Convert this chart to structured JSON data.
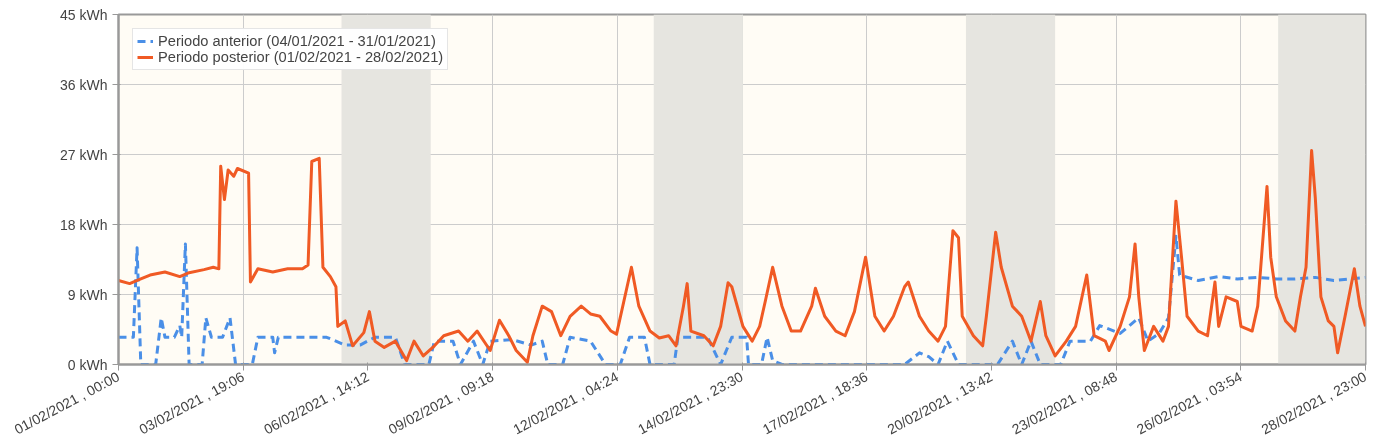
{
  "chart_data": {
    "type": "line",
    "xlim": [
      "2021-02-01T00:00",
      "2021-02-28T23:00"
    ],
    "xticks": [
      {
        "value": "2021-02-01T00:00",
        "label": "01/02/2021 , 00:00"
      },
      {
        "value": "2021-02-03T19:06",
        "label": "03/02/2021 , 19:06"
      },
      {
        "value": "2021-02-06T14:12",
        "label": "06/02/2021 , 14:12"
      },
      {
        "value": "2021-02-09T09:18",
        "label": "09/02/2021 , 09:18"
      },
      {
        "value": "2021-02-12T04:24",
        "label": "12/02/2021 , 04:24"
      },
      {
        "value": "2021-02-14T23:30",
        "label": "14/02/2021 , 23:30"
      },
      {
        "value": "2021-02-17T18:36",
        "label": "17/02/2021 , 18:36"
      },
      {
        "value": "2021-02-20T13:42",
        "label": "20/02/2021 , 13:42"
      },
      {
        "value": "2021-02-23T08:48",
        "label": "23/02/2021 , 08:48"
      },
      {
        "value": "2021-02-26T03:54",
        "label": "26/02/2021 , 03:54"
      },
      {
        "value": "2021-02-28T23:00",
        "label": "28/02/2021 , 23:00"
      }
    ],
    "ylim": [
      0,
      45
    ],
    "yticks": [
      {
        "value": 0,
        "label": "0 kWh"
      },
      {
        "value": 9,
        "label": "9 kWh"
      },
      {
        "value": 18,
        "label": "18 kWh"
      },
      {
        "value": 27,
        "label": "27 kWh"
      },
      {
        "value": 36,
        "label": "36 kWh"
      },
      {
        "value": 45,
        "label": "45 kWh"
      }
    ],
    "grid": true,
    "legend": "top left",
    "bands": [
      {
        "axis": "x",
        "from": "2021-02-06T00:00",
        "to": "2021-02-08T00:00",
        "color": "#e6e5e0"
      },
      {
        "axis": "x",
        "from": "2021-02-13T00:00",
        "to": "2021-02-15T00:00",
        "color": "#e6e5e0"
      },
      {
        "axis": "x",
        "from": "2021-02-20T00:00",
        "to": "2021-02-22T00:00",
        "color": "#e6e5e0"
      },
      {
        "axis": "x",
        "from": "2021-02-27T00:00",
        "to": "2021-02-28T23:00",
        "color": "#e6e5e0"
      }
    ],
    "series": [
      {
        "name": "Periodo anterior (04/01/2021 - 31/01/2021)",
        "color": "#4a8fe7",
        "line_style": "dashed",
        "x": [
          "2021-02-01T00:00",
          "2021-02-01T06:00",
          "2021-02-01T08:00",
          "2021-02-01T10:00",
          "2021-02-01T12:00",
          "2021-02-01T20:00",
          "2021-02-01T23:00",
          "2021-02-02T01:00",
          "2021-02-02T06:00",
          "2021-02-02T09:00",
          "2021-02-02T10:00",
          "2021-02-02T12:00",
          "2021-02-02T14:00",
          "2021-02-02T21:00",
          "2021-02-02T23:00",
          "2021-02-03T02:00",
          "2021-02-03T08:00",
          "2021-02-03T12:00",
          "2021-02-03T15:00",
          "2021-02-04T00:00",
          "2021-02-04T03:00",
          "2021-02-04T11:00",
          "2021-02-04T12:00",
          "2021-02-04T14:00",
          "2021-02-05T16:00",
          "2021-02-06T02:00",
          "2021-02-06T10:00",
          "2021-02-06T18:00",
          "2021-02-07T05:00",
          "2021-02-07T10:00",
          "2021-02-07T23:00",
          "2021-02-08T02:00",
          "2021-02-08T12:00",
          "2021-02-08T16:00",
          "2021-02-08T23:00",
          "2021-02-09T04:00",
          "2021-02-09T08:00",
          "2021-02-09T20:00",
          "2021-02-10T06:00",
          "2021-02-10T12:00",
          "2021-02-10T15:00",
          "2021-02-10T23:00",
          "2021-02-11T03:00",
          "2021-02-11T14:00",
          "2021-02-11T22:00",
          "2021-02-12T06:00",
          "2021-02-12T11:00",
          "2021-02-12T19:00",
          "2021-02-12T22:00",
          "2021-02-13T11:00",
          "2021-02-13T13:00",
          "2021-02-14T05:00",
          "2021-02-14T12:00",
          "2021-02-14T18:00",
          "2021-02-15T02:00",
          "2021-02-15T03:00",
          "2021-02-15T10:00",
          "2021-02-15T13:00",
          "2021-02-15T16:00",
          "2021-02-15T21:00",
          "2021-02-18T15:00",
          "2021-02-18T23:00",
          "2021-02-19T04:00",
          "2021-02-19T09:00",
          "2021-02-19T14:00",
          "2021-02-19T20:00",
          "2021-02-20T17:00",
          "2021-02-21T01:00",
          "2021-02-21T06:00",
          "2021-02-21T11:00",
          "2021-02-21T16:00",
          "2021-02-22T03:00",
          "2021-02-22T08:00",
          "2021-02-22T19:00",
          "2021-02-23T00:00",
          "2021-02-23T11:00",
          "2021-02-23T16:00",
          "2021-02-23T21:00",
          "2021-02-24T02:00",
          "2021-02-24T08:00",
          "2021-02-24T13:00",
          "2021-02-24T17:00",
          "2021-02-24T19:00",
          "2021-02-25T05:00",
          "2021-02-25T16:00",
          "2021-02-26T02:00",
          "2021-02-26T13:00",
          "2021-02-26T23:00",
          "2021-02-27T09:00",
          "2021-02-27T20:00",
          "2021-02-28T06:00",
          "2021-02-28T23:00"
        ],
        "values": [
          3.5,
          3.5,
          3.5,
          15,
          0,
          0,
          6,
          3.5,
          3.5,
          5,
          3.5,
          15.5,
          0,
          0,
          6,
          3.5,
          3.5,
          6,
          0,
          0,
          3.5,
          3.5,
          1.5,
          3.5,
          3.5,
          2.5,
          2.5,
          3.5,
          3.5,
          0,
          0,
          3,
          3,
          0,
          3,
          0,
          3,
          3.2,
          2.5,
          3,
          0,
          0,
          3.5,
          3,
          0,
          0,
          3.5,
          3.5,
          0,
          0,
          3.5,
          3.5,
          0,
          3.5,
          3.5,
          0,
          0,
          3.5,
          0.5,
          0,
          0,
          1.5,
          1,
          0,
          3,
          0,
          0,
          3,
          0,
          3,
          0,
          0,
          3,
          3,
          5,
          4,
          5,
          6,
          3,
          4,
          6,
          16.5,
          11.5,
          10.8,
          11.3,
          11,
          11.2,
          11,
          11,
          11.2,
          10.8,
          11.2
        ]
      },
      {
        "name": "Periodo posterior (01/02/2021 - 28/02/2021)",
        "color": "#f05a24",
        "line_style": "solid",
        "x": [
          "2021-02-01T00:00",
          "2021-02-01T06:00",
          "2021-02-01T12:00",
          "2021-02-01T17:00",
          "2021-02-02T01:00",
          "2021-02-02T09:00",
          "2021-02-02T14:00",
          "2021-02-02T22:00",
          "2021-02-03T03:00",
          "2021-02-03T06:00",
          "2021-02-03T07:00",
          "2021-02-03T09:00",
          "2021-02-03T11:00",
          "2021-02-03T14:00",
          "2021-02-03T16:00",
          "2021-02-03T22:00",
          "2021-02-03T23:00",
          "2021-02-04T03:00",
          "2021-02-04T11:00",
          "2021-02-04T19:00",
          "2021-02-05T03:00",
          "2021-02-05T06:00",
          "2021-02-05T08:00",
          "2021-02-05T12:00",
          "2021-02-05T14:00",
          "2021-02-05T18:00",
          "2021-02-05T21:00",
          "2021-02-05T22:00",
          "2021-02-06T02:00",
          "2021-02-06T06:00",
          "2021-02-06T12:00",
          "2021-02-06T15:00",
          "2021-02-06T18:00",
          "2021-02-06T23:00",
          "2021-02-07T05:00",
          "2021-02-07T11:00",
          "2021-02-07T15:00",
          "2021-02-07T20:00",
          "2021-02-08T02:00",
          "2021-02-08T07:00",
          "2021-02-08T15:00",
          "2021-02-08T20:00",
          "2021-02-09T01:00",
          "2021-02-09T08:00",
          "2021-02-09T13:00",
          "2021-02-09T18:00",
          "2021-02-09T22:00",
          "2021-02-10T04:00",
          "2021-02-10T07:00",
          "2021-02-10T12:00",
          "2021-02-10T17:00",
          "2021-02-10T22:00",
          "2021-02-11T03:00",
          "2021-02-11T09:00",
          "2021-02-11T14:00",
          "2021-02-11T19:00",
          "2021-02-12T01:00",
          "2021-02-12T04:00",
          "2021-02-12T12:00",
          "2021-02-12T16:00",
          "2021-02-12T22:00",
          "2021-02-13T03:00",
          "2021-02-13T08:00",
          "2021-02-13T12:00",
          "2021-02-13T16:00",
          "2021-02-13T18:00",
          "2021-02-13T20:00",
          "2021-02-14T03:00",
          "2021-02-14T08:00",
          "2021-02-14T12:00",
          "2021-02-14T16:00",
          "2021-02-14T18:00",
          "2021-02-15T00:00",
          "2021-02-15T05:00",
          "2021-02-15T09:00",
          "2021-02-15T12:00",
          "2021-02-15T16:00",
          "2021-02-15T21:00",
          "2021-02-16T02:00",
          "2021-02-16T07:00",
          "2021-02-16T13:00",
          "2021-02-16T15:00",
          "2021-02-16T20:00",
          "2021-02-17T02:00",
          "2021-02-17T07:00",
          "2021-02-17T12:00",
          "2021-02-17T18:00",
          "2021-02-17T23:00",
          "2021-02-18T04:00",
          "2021-02-18T09:00",
          "2021-02-18T15:00",
          "2021-02-18T17:00",
          "2021-02-18T23:00",
          "2021-02-19T04:00",
          "2021-02-19T09:00",
          "2021-02-19T13:00",
          "2021-02-19T17:00",
          "2021-02-19T20:00",
          "2021-02-19T22:00",
          "2021-02-20T04:00",
          "2021-02-20T09:00",
          "2021-02-20T11:00",
          "2021-02-20T16:00",
          "2021-02-20T19:00",
          "2021-02-21T01:00",
          "2021-02-21T06:00",
          "2021-02-21T11:00",
          "2021-02-21T16:00",
          "2021-02-21T19:00",
          "2021-02-22T00:00",
          "2021-02-22T06:00",
          "2021-02-22T11:00",
          "2021-02-22T17:00",
          "2021-02-22T21:00",
          "2021-02-23T03:00",
          "2021-02-23T05:00",
          "2021-02-23T11:00",
          "2021-02-23T16:00",
          "2021-02-23T19:00",
          "2021-02-23T21:00",
          "2021-02-24T00:00",
          "2021-02-24T05:00",
          "2021-02-24T10:00",
          "2021-02-24T13:00",
          "2021-02-24T17:00",
          "2021-02-24T20:00",
          "2021-02-24T23:00",
          "2021-02-25T05:00",
          "2021-02-25T10:00",
          "2021-02-25T14:00",
          "2021-02-25T16:00",
          "2021-02-25T20:00",
          "2021-02-26T02:00",
          "2021-02-26T04:00",
          "2021-02-26T10:00",
          "2021-02-26T13:00",
          "2021-02-26T18:00",
          "2021-02-26T20:00",
          "2021-02-26T23:00",
          "2021-02-27T04:00",
          "2021-02-27T09:00",
          "2021-02-27T12:00",
          "2021-02-27T15:00",
          "2021-02-27T18:00",
          "2021-02-27T20:00",
          "2021-02-27T23:00",
          "2021-02-28T03:00",
          "2021-02-28T06:00",
          "2021-02-28T08:00",
          "2021-02-28T12:00",
          "2021-02-28T17:00",
          "2021-02-28T20:00",
          "2021-02-28T23:00"
        ],
        "values": [
          10.8,
          10.4,
          11.0,
          11.5,
          11.9,
          11.3,
          11.8,
          12.2,
          12.5,
          12.3,
          25.5,
          21.2,
          25.0,
          24.2,
          25.2,
          24.6,
          10.6,
          12.3,
          11.9,
          12.3,
          12.3,
          12.8,
          26.1,
          26.5,
          12.5,
          11.3,
          10.0,
          4.9,
          5.6,
          2.4,
          4.1,
          6.8,
          3.0,
          2.2,
          3.0,
          0.5,
          3.0,
          1.1,
          2.4,
          3.7,
          4.3,
          3.0,
          4.3,
          1.8,
          5.7,
          3.7,
          1.8,
          0.3,
          3.7,
          7.5,
          6.8,
          3.7,
          6.2,
          7.5,
          6.5,
          6.2,
          4.3,
          3.9,
          12.5,
          7.5,
          4.3,
          3.4,
          3.7,
          2.4,
          7.5,
          10.4,
          4.3,
          3.7,
          2.4,
          4.9,
          10.5,
          10.0,
          4.9,
          3.0,
          4.9,
          8.1,
          12.5,
          7.5,
          4.3,
          4.3,
          7.5,
          9.8,
          6.2,
          4.3,
          3.7,
          6.8,
          13.8,
          6.2,
          4.3,
          6.2,
          10.0,
          10.6,
          6.2,
          4.3,
          3.0,
          4.9,
          17.2,
          16.3,
          6.2,
          3.7,
          2.4,
          6.2,
          17.0,
          12.5,
          7.5,
          6.2,
          3.0,
          8.1,
          3.7,
          1.1,
          3.0,
          4.9,
          11.5,
          3.7,
          3.0,
          1.8,
          4.9,
          8.7,
          15.5,
          8.7,
          1.8,
          4.9,
          3.0,
          4.9,
          21.0,
          13.8,
          6.2,
          4.3,
          3.7,
          10.6,
          4.9,
          8.7,
          8.1,
          4.9,
          4.3,
          7.5,
          22.9,
          13.8,
          8.7,
          5.6,
          4.3,
          8.7,
          12.5,
          27.5,
          21.4,
          8.7,
          5.6,
          4.9,
          1.5,
          6.2,
          12.3,
          7.5,
          4.9
        ]
      }
    ]
  }
}
